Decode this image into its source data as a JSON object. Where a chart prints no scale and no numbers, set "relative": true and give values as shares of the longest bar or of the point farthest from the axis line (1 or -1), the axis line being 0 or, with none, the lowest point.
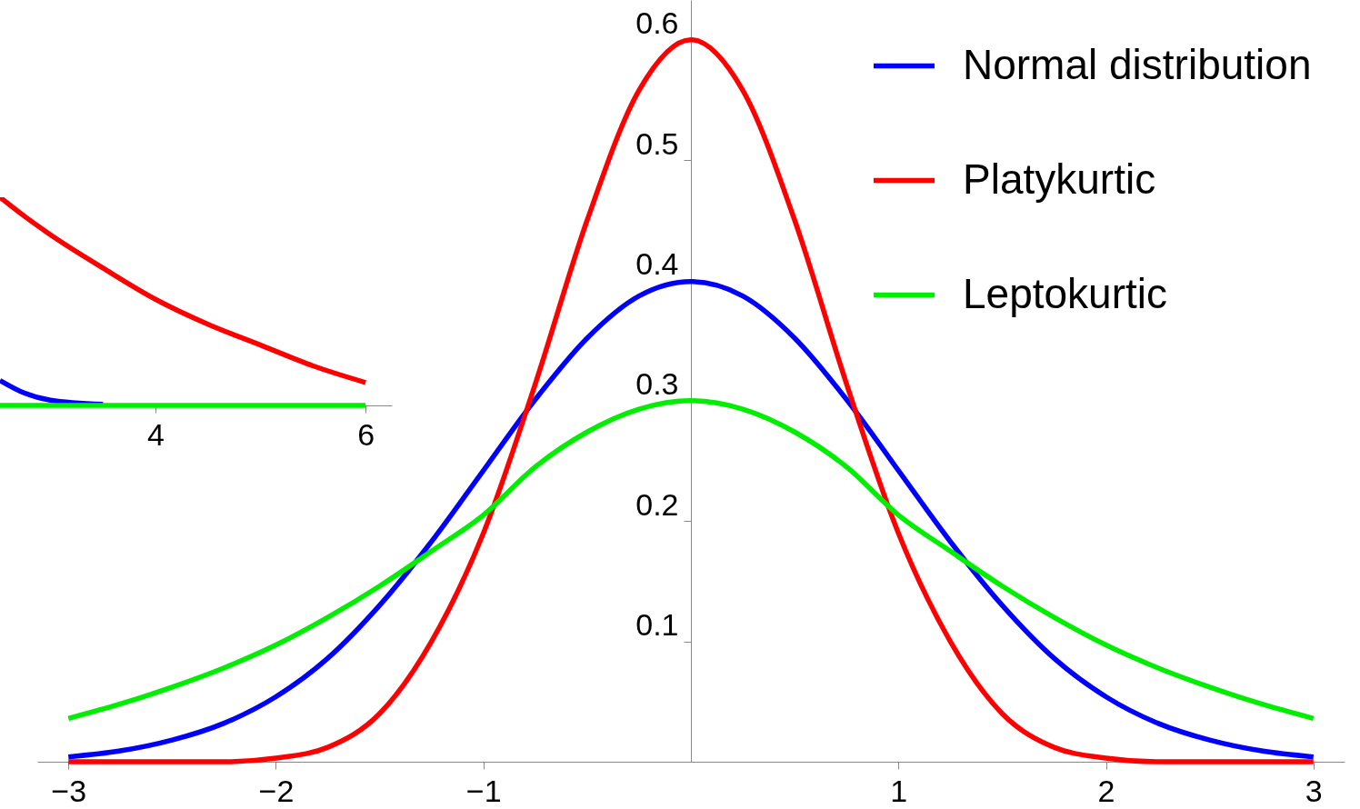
{
  "chart_data": [
    {
      "type": "line",
      "x": [
        -3,
        -2.75,
        -2.5,
        -2.25,
        -2,
        -1.75,
        -1.5,
        -1.25,
        -1,
        -0.75,
        -0.5,
        -0.25,
        0,
        0.25,
        0.5,
        0.75,
        1,
        1.25,
        1.5,
        1.75,
        2,
        2.25,
        2.5,
        2.75,
        3
      ],
      "series": [
        {
          "name": "Normal distribution",
          "color": "#0000ff",
          "values": [
            0.004,
            0.009,
            0.018,
            0.032,
            0.054,
            0.086,
            0.13,
            0.183,
            0.242,
            0.301,
            0.352,
            0.387,
            0.399,
            0.387,
            0.352,
            0.301,
            0.242,
            0.183,
            0.13,
            0.086,
            0.054,
            0.032,
            0.018,
            0.009,
            0.004
          ]
        },
        {
          "name": "Platykurtic",
          "color": "#ff0000",
          "values": [
            0,
            0,
            0,
            0,
            0.003,
            0.012,
            0.04,
            0.1,
            0.19,
            0.314,
            0.45,
            0.558,
            0.6,
            0.558,
            0.45,
            0.314,
            0.19,
            0.1,
            0.04,
            0.012,
            0.003,
            0,
            0,
            0,
            0
          ]
        },
        {
          "name": "Leptokurtic",
          "color": "#00ee00",
          "values": [
            0.036,
            0.048,
            0.062,
            0.078,
            0.097,
            0.12,
            0.146,
            0.175,
            0.205,
            0.245,
            0.274,
            0.293,
            0.3,
            0.293,
            0.274,
            0.245,
            0.205,
            0.175,
            0.146,
            0.12,
            0.097,
            0.078,
            0.062,
            0.048,
            0.036
          ]
        }
      ],
      "xlim": [
        -3.15,
        3.15
      ],
      "ylim": [
        0,
        0.633
      ],
      "xticks": [
        -3,
        -2,
        -1,
        1,
        2,
        3
      ],
      "yticks": [
        0.1,
        0.2,
        0.3,
        0.4,
        0.5,
        0.6
      ],
      "legend": "top right"
    },
    {
      "type": "line",
      "relative": true,
      "x": [
        2.52,
        2.75,
        3,
        3.5,
        4,
        4.5,
        5,
        5.5,
        6
      ],
      "series": [
        {
          "color": "#ff0000",
          "values": [
            1,
            0.91,
            0.82,
            0.66,
            0.51,
            0.39,
            0.29,
            0.19,
            0.11
          ]
        },
        {
          "color": "#0000ff",
          "values": [
            0.12,
            0.06,
            0.025,
            0.005,
            null,
            null,
            null,
            null,
            null
          ]
        },
        {
          "color": "#00ee00",
          "values": [
            0,
            0,
            0,
            0,
            0,
            0,
            0,
            0,
            0
          ]
        }
      ],
      "xlim": [
        2.52,
        6.25
      ],
      "xticks": [
        4,
        6
      ]
    }
  ]
}
